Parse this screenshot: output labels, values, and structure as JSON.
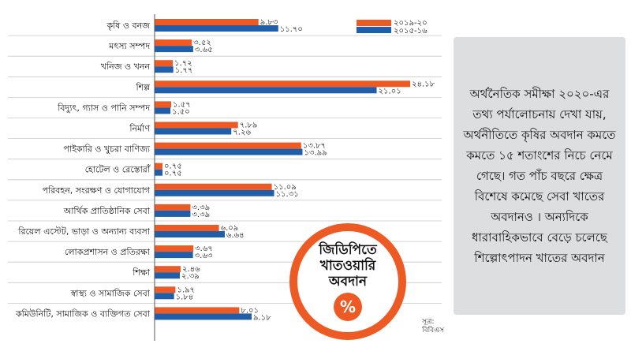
{
  "chart_data": {
    "type": "bar",
    "orientation": "horizontal",
    "title": "",
    "xlabel": "",
    "ylabel": "",
    "xlim": [
      0,
      25
    ],
    "categories": [
      "কৃষি ও বনজ",
      "মৎস্য সম্পদ",
      "খনিজ ও খনন",
      "শিল্প",
      "বিদ্যুৎ, গ্যাস ও পানি সম্পদ",
      "নির্মাণ",
      "পাইকারি ও খুচরা বাণিজ্য",
      "হোটেল ও রেস্তোরাঁ",
      "পরিবহন, সংরক্ষণ ও যোগাযোগ",
      "আর্থিক প্রাতিষ্ঠানিক সেবা",
      "রিয়েল এস্টেট, ভাড়া ও অন্যান্য ব্যবসা",
      "লোকপ্রশাসন ও প্রতিরক্ষা",
      "শিক্ষা",
      "স্বাস্থ্য ও সামাজিক সেবা",
      "কমিউনিটি, সামাজিক ও ব্যক্তিগত সেবা"
    ],
    "series": [
      {
        "name": "২০১৯-২০",
        "color": "#ee5a24",
        "values": [
          9.83,
          3.52,
          1.72,
          24.18,
          1.57,
          7.89,
          13.87,
          0.75,
          11.09,
          3.39,
          6.09,
          3.67,
          2.46,
          1.97,
          8.01
        ],
        "labels": [
          "৯.৮৩",
          "৩.৫২",
          "১.৭২",
          "২৪.১৮",
          "১.৫৭",
          "৭.৮৯",
          "১৩.৮৭",
          "০.৭৫",
          "১১.০৯",
          "৩.৩৯",
          "৬.০৯",
          "৩.৬৭",
          "২.৪৬",
          "১.৯৭",
          "৮.০১"
        ]
      },
      {
        "name": "২০১৫-১৬",
        "color": "#1f5faa",
        "values": [
          11.7,
          3.65,
          1.77,
          21.01,
          1.5,
          7.26,
          13.99,
          0.75,
          11.31,
          3.39,
          6.64,
          3.63,
          2.39,
          1.84,
          9.18
        ],
        "labels": [
          "১১.৭০",
          "৩.৬৫",
          "১.৭৭",
          "২১.০১",
          "১.৫০",
          "৭.২৬",
          "১৩.৯৯",
          "০.৭৫",
          "১১.৩১",
          "৩.৩৯",
          "৬.৬৪",
          "৩.৬৩",
          "২.৩৯",
          "১.৮৪",
          "৯.১৮"
        ]
      }
    ],
    "legend_position": "top-right",
    "grid": false
  },
  "badge": {
    "title": "জিডিপিতে\nখাতওয়ারি\nঅবদান",
    "percent_symbol": "%"
  },
  "source": {
    "label": "সূত্র:",
    "name": "বিবিএস"
  },
  "note": {
    "text": "অর্থনৈতিক সমীক্ষা ২০২০-এর তথ্য পর্যালোচনায় দেখা যায়, অর্থনীতিতে কৃষির অবদান কমতে কমতে ১৫ শতাংশের নিচে নেমে গেছে। গত পাঁচ বছরে ক্ষেত্র বিশেষে কমেছে সেবা খাতের অবদানও । অন্যদিকে ধারাবাহিকভাবে বেড়ে চলেছে শিল্পোৎপাদন খাতের অবদান"
  }
}
